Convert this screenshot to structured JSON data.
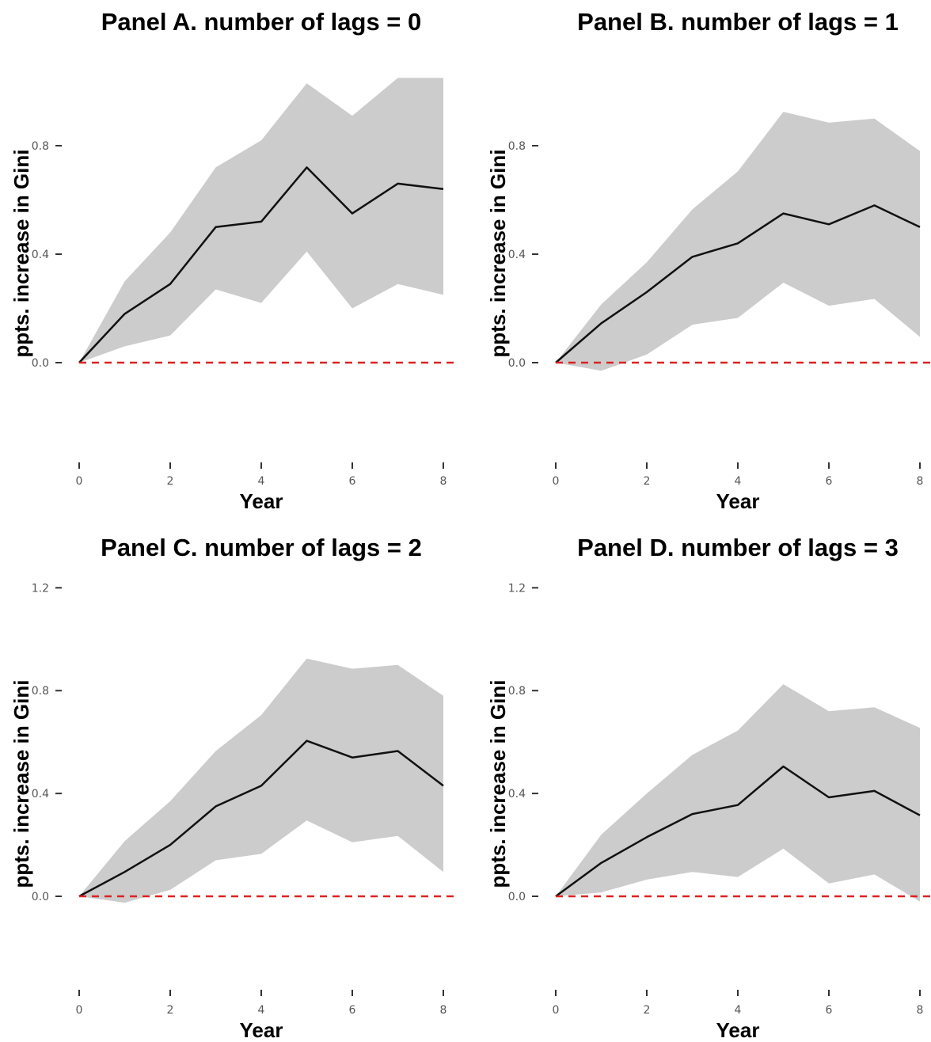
{
  "chart_data": [
    {
      "type": "line",
      "title": "Panel A. number of lags = 0",
      "xlabel": "Year",
      "ylabel": "ppts. increase in Gini",
      "xticks": [
        "0",
        "2",
        "4",
        "6",
        "8"
      ],
      "yticks": [
        "0.0",
        "0.4",
        "0.8"
      ],
      "xlim": [
        0,
        8
      ],
      "ylim": [
        -0.38,
        1.07
      ],
      "grid": false,
      "reference_line": {
        "y": 0,
        "style": "dashed",
        "color": "#dd2222"
      },
      "colors": {
        "line": "#111111",
        "band": "#cccccc"
      },
      "series": [
        {
          "x": [
            0,
            1,
            2,
            3,
            4,
            5,
            6,
            7,
            8
          ],
          "y": [
            0.0,
            0.18,
            0.29,
            0.5,
            0.52,
            0.72,
            0.55,
            0.66,
            0.64
          ],
          "lower": [
            0.0,
            0.06,
            0.1,
            0.27,
            0.22,
            0.41,
            0.2,
            0.29,
            0.25
          ],
          "upper": [
            0.0,
            0.3,
            0.48,
            0.72,
            0.82,
            1.03,
            0.91,
            1.05,
            1.05
          ]
        }
      ]
    },
    {
      "type": "line",
      "title": "Panel B. number of lags = 1",
      "xlabel": "Year",
      "ylabel": "ppts. increase in Gini",
      "xticks": [
        "0",
        "2",
        "4",
        "6",
        "8"
      ],
      "yticks": [
        "0.0",
        "0.4",
        "0.8"
      ],
      "xlim": [
        0,
        8
      ],
      "ylim": [
        -0.38,
        1.07
      ],
      "grid": false,
      "reference_line": {
        "y": 0,
        "style": "dashed",
        "color": "#dd2222"
      },
      "colors": {
        "line": "#111111",
        "band": "#cccccc"
      },
      "series": [
        {
          "x": [
            0,
            1,
            2,
            3,
            4,
            5,
            6,
            7,
            8
          ],
          "y": [
            0.0,
            0.145,
            0.26,
            0.39,
            0.44,
            0.55,
            0.51,
            0.58,
            0.5
          ],
          "lower": [
            0.0,
            -0.03,
            0.03,
            0.14,
            0.165,
            0.295,
            0.21,
            0.235,
            0.095
          ],
          "upper": [
            0.0,
            0.215,
            0.37,
            0.565,
            0.705,
            0.925,
            0.885,
            0.9,
            0.78
          ]
        }
      ]
    },
    {
      "type": "line",
      "title": "Panel C. number of lags = 2",
      "xlabel": "Year",
      "ylabel": "ppts. increase in Gini",
      "xticks": [
        "0",
        "2",
        "4",
        "6",
        "8"
      ],
      "yticks": [
        "0.0",
        "0.4",
        "0.8",
        "1.2"
      ],
      "xlim": [
        0,
        8
      ],
      "ylim": [
        -0.38,
        1.31
      ],
      "grid": false,
      "reference_line": {
        "y": 0,
        "style": "dashed",
        "color": "#dd2222"
      },
      "colors": {
        "line": "#111111",
        "band": "#cccccc"
      },
      "series": [
        {
          "x": [
            0,
            1,
            2,
            3,
            4,
            5,
            6,
            7,
            8
          ],
          "y": [
            0.0,
            0.095,
            0.2,
            0.35,
            0.43,
            0.605,
            0.54,
            0.565,
            0.43
          ],
          "lower": [
            0.0,
            -0.025,
            0.025,
            0.14,
            0.165,
            0.295,
            0.21,
            0.235,
            0.095
          ],
          "upper": [
            0.0,
            0.215,
            0.37,
            0.565,
            0.705,
            0.925,
            0.885,
            0.9,
            0.78
          ]
        }
      ]
    },
    {
      "type": "line",
      "title": "Panel D. number of lags = 3",
      "xlabel": "Year",
      "ylabel": "ppts. increase in Gini",
      "xticks": [
        "0",
        "2",
        "4",
        "6",
        "8"
      ],
      "yticks": [
        "0.0",
        "0.4",
        "0.8",
        "1.2"
      ],
      "xlim": [
        0,
        8
      ],
      "ylim": [
        -0.38,
        1.31
      ],
      "grid": false,
      "reference_line": {
        "y": 0,
        "style": "dashed",
        "color": "#dd2222"
      },
      "colors": {
        "line": "#111111",
        "band": "#cccccc"
      },
      "series": [
        {
          "x": [
            0,
            1,
            2,
            3,
            4,
            5,
            6,
            7,
            8
          ],
          "y": [
            0.0,
            0.13,
            0.23,
            0.32,
            0.355,
            0.505,
            0.385,
            0.41,
            0.315
          ],
          "lower": [
            0.0,
            0.015,
            0.065,
            0.095,
            0.075,
            0.185,
            0.05,
            0.085,
            -0.02
          ],
          "upper": [
            0.0,
            0.24,
            0.4,
            0.55,
            0.645,
            0.825,
            0.72,
            0.735,
            0.655
          ]
        }
      ]
    }
  ]
}
